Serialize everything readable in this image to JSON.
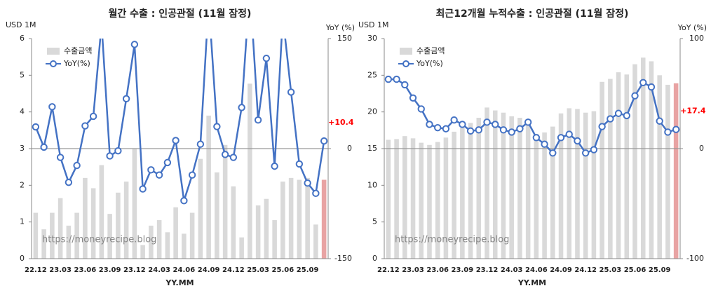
{
  "chart_data": [
    {
      "type": "bar_line",
      "title": "월간 수출 : 인공관절 (11월 잠정)",
      "y_label": "USD 1M",
      "y2_label": "YoY (%)",
      "x_label": "YY.MM",
      "watermark": "https://moneyrecipe.blog",
      "categories": [
        "22.12",
        null,
        null,
        "23.03",
        null,
        null,
        "23.06",
        null,
        null,
        "23.09",
        null,
        null,
        "23.12",
        null,
        null,
        "24.03",
        null,
        null,
        "24.06",
        null,
        null,
        "24.09",
        null,
        null,
        "24.12",
        null,
        null,
        "25.03",
        null,
        null,
        "25.06",
        null,
        null,
        "25.09",
        null,
        null
      ],
      "series": [
        {
          "name": "수출금액",
          "color": "#d9d9d9",
          "last_color": "#e8a3a3",
          "values": [
            1.25,
            0.8,
            1.25,
            1.65,
            0.9,
            1.25,
            2.2,
            1.92,
            2.55,
            1.22,
            1.8,
            2.1,
            3.0,
            0.37,
            0.9,
            1.05,
            0.72,
            1.4,
            0.68,
            1.25,
            2.72,
            3.9,
            2.35,
            3.1,
            1.97,
            0.58,
            4.77,
            1.45,
            1.63,
            1.05,
            2.1,
            2.2,
            2.15,
            2.2,
            0.93,
            2.15
          ]
        },
        {
          "name": "YoY(%)",
          "color": "#4472c4",
          "axis": "y2",
          "label_color": "#ff0000",
          "values": [
            29.6,
            2,
            57,
            -12,
            -46,
            -23,
            31,
            44,
            170,
            -10,
            -3,
            68,
            142,
            -55,
            -29,
            -36,
            -19,
            11,
            -71,
            -36,
            6,
            200,
            30,
            -8,
            -12,
            56,
            220,
            39,
            123,
            -24,
            180,
            77,
            -21,
            -47,
            -61,
            10.4
          ],
          "value_labels": [
            null,
            null,
            null,
            null,
            null,
            null,
            null,
            null,
            null,
            null,
            null,
            null,
            null,
            null,
            null,
            null,
            null,
            null,
            null,
            null,
            null,
            null,
            null,
            null,
            null,
            null,
            null,
            null,
            null,
            null,
            null,
            null,
            null,
            null,
            null,
            "+10.4"
          ]
        }
      ],
      "ylim": [
        0,
        6
      ],
      "yticks": [
        0,
        1,
        2,
        3,
        4,
        5,
        6
      ],
      "y2lim": [
        -150,
        150
      ],
      "y2ticks": [
        -150,
        0,
        150
      ]
    },
    {
      "type": "bar_line",
      "title": "최근12개월 누적수출 : 인공관절 (11월 잠정)",
      "y_label": "USD 1M",
      "y2_label": "YoY (%)",
      "x_label": "YY.MM",
      "watermark": "https://moneyrecipe.blog",
      "categories": [
        "22.12",
        null,
        null,
        "23.03",
        null,
        null,
        "23.06",
        null,
        null,
        "23.09",
        null,
        null,
        "23.12",
        null,
        null,
        "24.03",
        null,
        null,
        "24.06",
        null,
        null,
        "24.09",
        null,
        null,
        "24.12",
        null,
        null,
        "25.03",
        null,
        null,
        "25.06",
        null,
        null,
        "25.09",
        null,
        null
      ],
      "series": [
        {
          "name": "수출금액",
          "color": "#d9d9d9",
          "last_color": "#e8a3a3",
          "values": [
            16.2,
            16.3,
            16.7,
            16.4,
            15.8,
            15.5,
            15.9,
            16.5,
            17.3,
            17.8,
            18.5,
            19.2,
            20.6,
            20.2,
            19.9,
            19.4,
            19.2,
            19.0,
            17.0,
            17.2,
            18.0,
            19.8,
            20.5,
            20.4,
            19.9,
            20.1,
            24.1,
            24.5,
            25.4,
            25.1,
            26.5,
            27.4,
            26.9,
            25.0,
            23.7,
            23.9
          ]
        },
        {
          "name": "YoY(%)",
          "color": "#4472c4",
          "axis": "y2",
          "label_color": "#ff0000",
          "values": [
            63,
            63,
            58,
            46,
            36,
            22,
            19,
            18,
            26,
            22,
            16,
            17,
            24,
            22,
            17,
            15,
            18,
            24,
            10,
            4,
            -4,
            10,
            13,
            7,
            -4,
            -1,
            20,
            27,
            32,
            30,
            48,
            60,
            56,
            25,
            15,
            17.4
          ],
          "value_labels": [
            null,
            null,
            null,
            null,
            null,
            null,
            null,
            null,
            null,
            null,
            null,
            null,
            null,
            null,
            null,
            null,
            null,
            null,
            null,
            null,
            null,
            null,
            null,
            null,
            null,
            null,
            null,
            null,
            null,
            null,
            null,
            null,
            null,
            null,
            null,
            "+17.4"
          ]
        }
      ],
      "ylim": [
        0,
        30
      ],
      "yticks": [
        0,
        5,
        10,
        15,
        20,
        25,
        30
      ],
      "y2lim": [
        -100,
        100
      ],
      "y2ticks": [
        -100,
        0,
        100
      ]
    }
  ]
}
